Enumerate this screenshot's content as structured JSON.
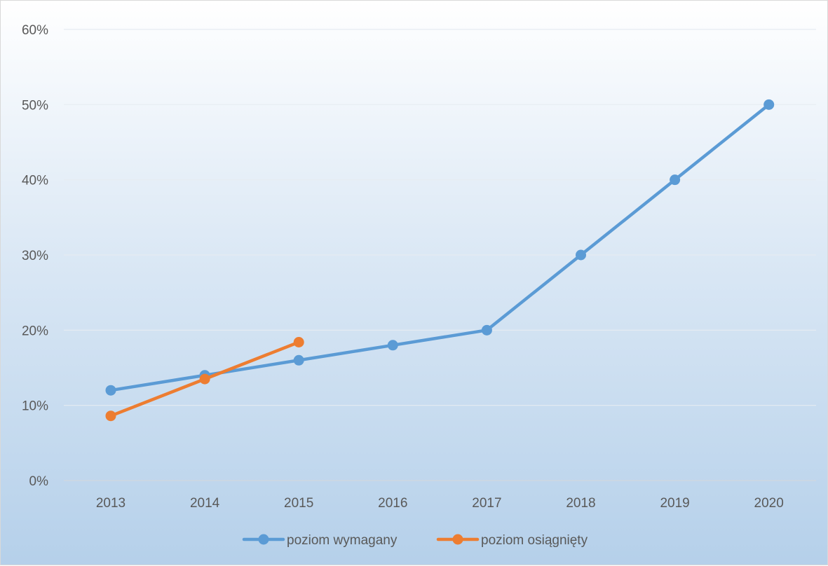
{
  "chart_data": {
    "type": "line",
    "title": "",
    "xlabel": "",
    "ylabel": "",
    "categories": [
      "2013",
      "2014",
      "2015",
      "2016",
      "2017",
      "2018",
      "2019",
      "2020"
    ],
    "ylim": [
      0,
      0.6
    ],
    "y_ticks": [
      0,
      0.1,
      0.2,
      0.3,
      0.4,
      0.5,
      0.6
    ],
    "y_tick_labels": [
      "0%",
      "10%",
      "20%",
      "30%",
      "40%",
      "50%",
      "60%"
    ],
    "grid": true,
    "legend_position": "bottom",
    "series": [
      {
        "name": "poziom wymagany",
        "color": "#5b9bd5",
        "values": [
          0.12,
          0.14,
          0.16,
          0.18,
          0.2,
          0.3,
          0.4,
          0.5
        ]
      },
      {
        "name": "poziom osiągnięty",
        "color": "#ed7d31",
        "values": [
          0.086,
          0.135,
          0.184,
          null,
          null,
          null,
          null,
          null
        ]
      }
    ]
  }
}
